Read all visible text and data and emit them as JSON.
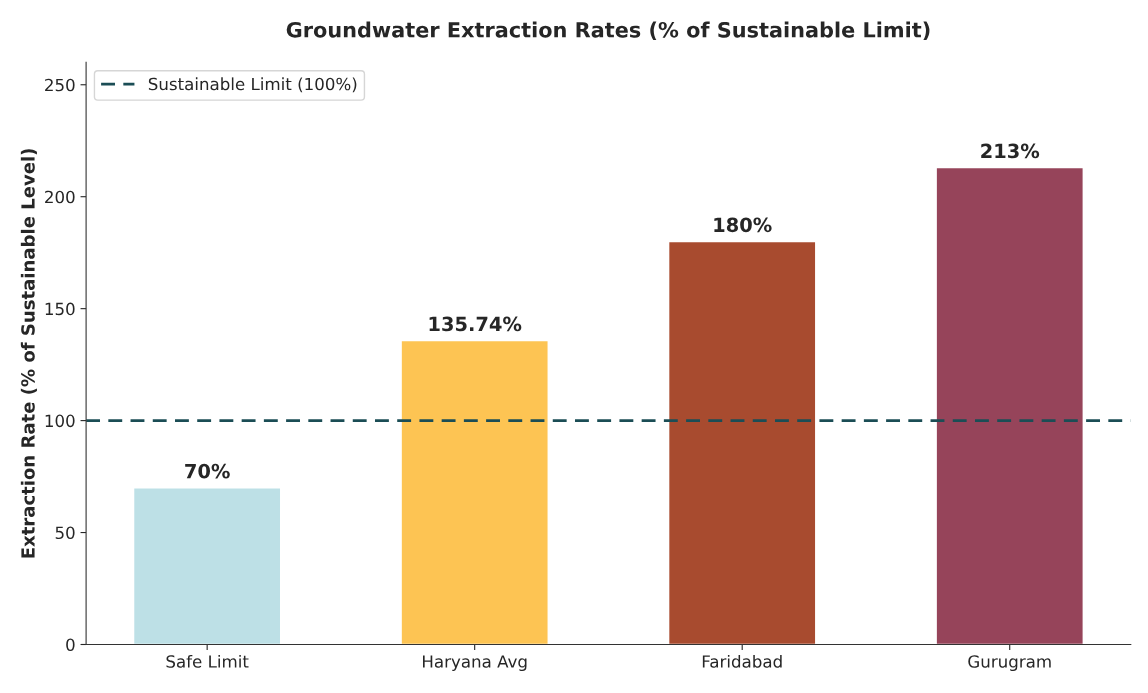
{
  "chart_data": {
    "type": "bar",
    "title": "Groundwater Extraction Rates (% of Sustainable Limit)",
    "ylabel": "Extraction Rate (% of Sustainable Level)",
    "categories": [
      "Safe Limit",
      "Haryana Avg",
      "Faridabad",
      "Gurugram"
    ],
    "values": [
      70,
      135.74,
      180,
      213
    ],
    "colors": [
      "#bde0e6",
      "#fdc453",
      "#a84b2f",
      "#96445a"
    ],
    "value_labels": [
      "70%",
      "135.74%",
      "180%",
      "213%"
    ],
    "ylim": [
      0,
      260
    ],
    "yticks": [
      0,
      50,
      100,
      150,
      200,
      250
    ],
    "ref_lines": [
      {
        "axis": "y",
        "value": 100,
        "label": "Sustainable Limit (100%)",
        "color": "#1b4d55",
        "line_style": "dashed"
      }
    ],
    "legend": "top left",
    "grid": false
  }
}
